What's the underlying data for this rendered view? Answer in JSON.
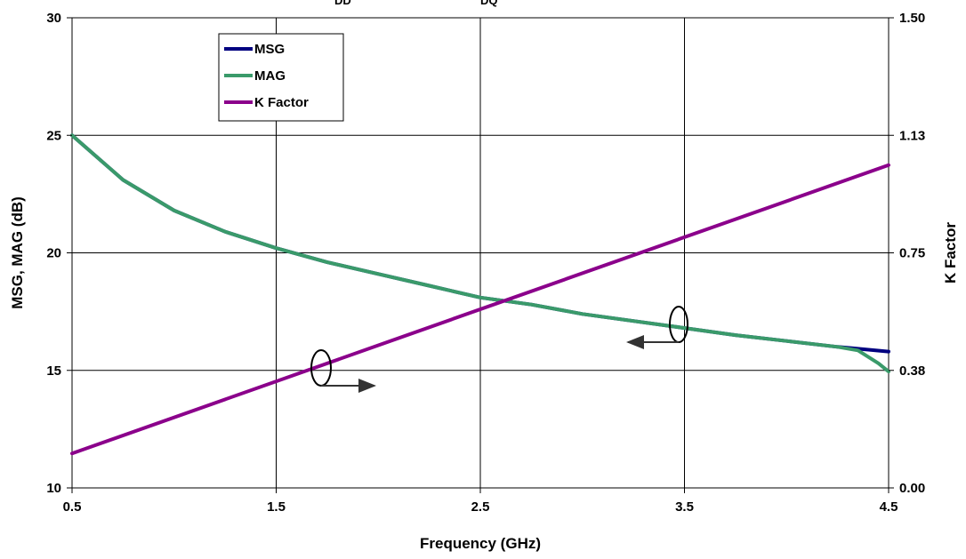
{
  "chart_data": {
    "type": "line",
    "title_fragment": {
      "left_subscript": "DD",
      "right_subscript": "DQ"
    },
    "xlabel": "Frequency (GHz)",
    "ylabel": "MSG, MAG (dB)",
    "y2label": "K Factor",
    "xlim": [
      0.5,
      4.5
    ],
    "ylim": [
      10,
      30
    ],
    "y2lim": [
      0,
      1.5
    ],
    "x_ticks": [
      "0.5",
      "1.5",
      "2.5",
      "3.5",
      "4.5"
    ],
    "y_ticks": [
      "10",
      "15",
      "20",
      "25",
      "30"
    ],
    "y2_ticks": [
      "0.00",
      "0.38",
      "0.75",
      "1.13",
      "1.50"
    ],
    "grid": true,
    "legend_position": "top-left",
    "series": [
      {
        "name": "MSG",
        "axis": "left",
        "color": "#000080",
        "x": [
          0.5,
          0.75,
          1.0,
          1.25,
          1.5,
          1.75,
          2.0,
          2.25,
          2.5,
          2.75,
          3.0,
          3.25,
          3.5,
          3.75,
          4.0,
          4.25,
          4.5
        ],
        "y": [
          25.0,
          23.1,
          21.8,
          20.9,
          20.2,
          19.6,
          19.1,
          18.6,
          18.1,
          17.8,
          17.4,
          17.1,
          16.8,
          16.5,
          16.25,
          16.0,
          15.8
        ]
      },
      {
        "name": "MAG",
        "axis": "left",
        "color": "#3A9A6A",
        "x": [
          0.5,
          0.75,
          1.0,
          1.25,
          1.5,
          1.75,
          2.0,
          2.25,
          2.5,
          2.75,
          3.0,
          3.25,
          3.5,
          3.75,
          4.0,
          4.25,
          4.35,
          4.45,
          4.5
        ],
        "y": [
          25.0,
          23.1,
          21.8,
          20.9,
          20.2,
          19.6,
          19.1,
          18.6,
          18.1,
          17.8,
          17.4,
          17.1,
          16.8,
          16.5,
          16.25,
          16.0,
          15.85,
          15.3,
          14.95
        ]
      },
      {
        "name": "K Factor",
        "axis": "right",
        "color": "#8B008B",
        "x": [
          0.5,
          4.5
        ],
        "y": [
          0.11,
          1.03
        ]
      }
    ]
  }
}
